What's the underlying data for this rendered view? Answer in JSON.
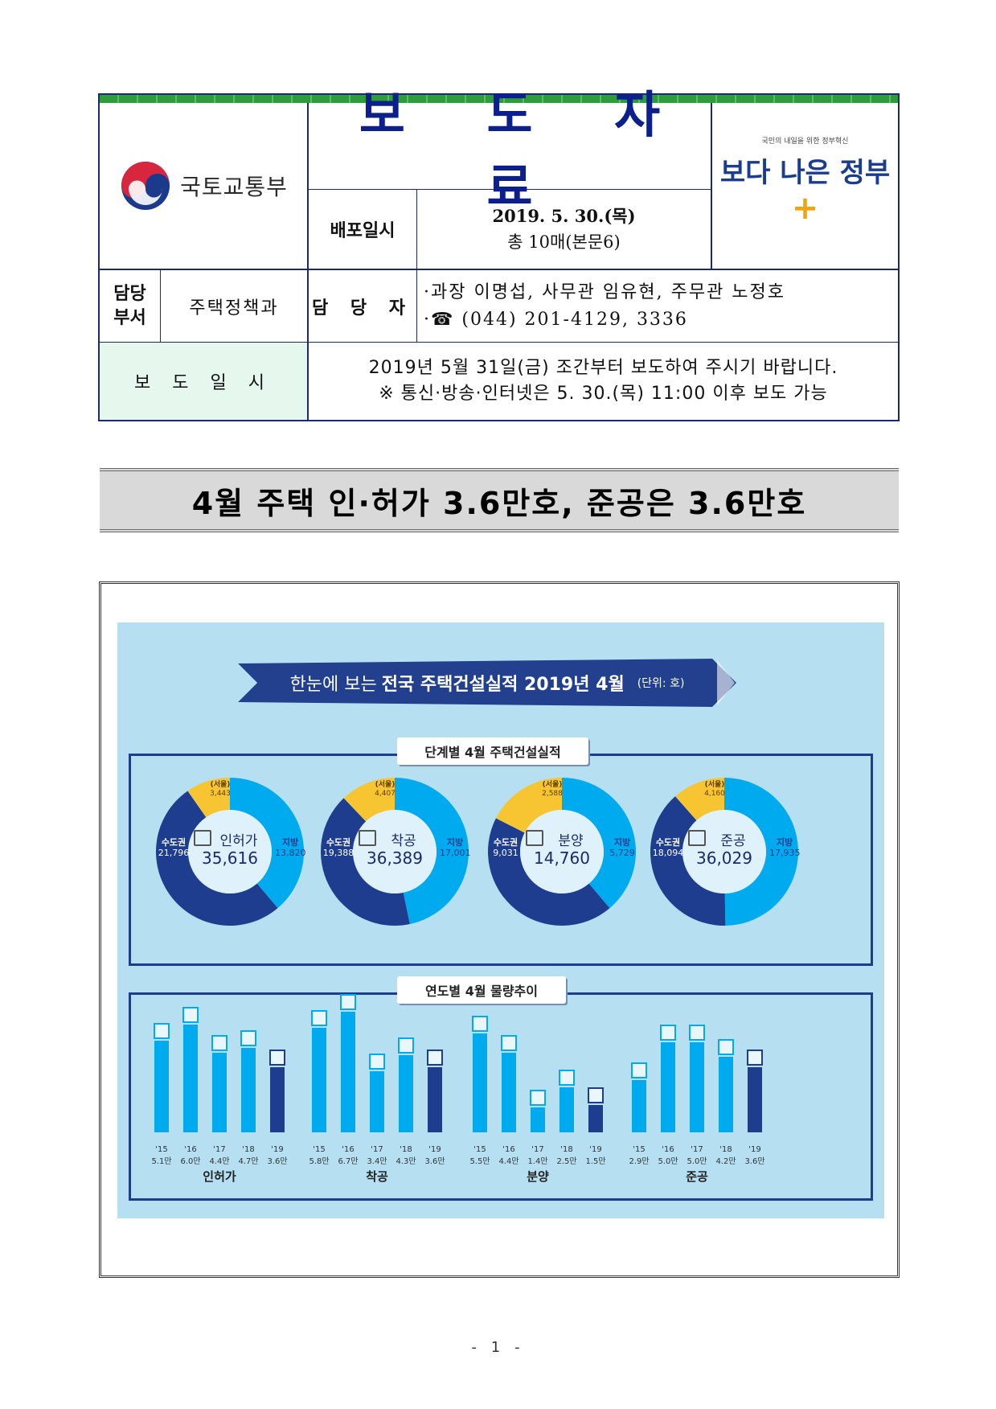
{
  "header": {
    "ministry_name": "국토교통부",
    "title": "보 도 자 료",
    "gov_slogan_small": "국민의 내일을 위한 정부혁신",
    "gov_slogan_main": "보다 나은 정부",
    "distribution": {
      "label": "배포일시",
      "date": "2019. 5. 30.(목)",
      "pages": "총 10매(본문6)"
    },
    "department": {
      "label": "담당\n부서",
      "value": "주택정책과"
    },
    "contact": {
      "label": "담 당 자",
      "line1": "·과장 이명섭, 사무관 임유현, 주무관 노정호",
      "line2": "·☎ (044) 201-4129, 3336"
    },
    "release": {
      "label": "보 도 일 시",
      "line1": "2019년 5월 31일(금) 조간부터 보도하여 주시기 바랍니다.",
      "line2": "※ 통신·방송·인터넷은 5. 30.(목) 11:00 이후 보도 가능"
    }
  },
  "headline": "4월 주택 인·허가 3.6만호, 준공은 3.6만호",
  "infographic": {
    "banner": {
      "pre": "한눈에 보는",
      "main": "전국 주택건설실적 2019년 4월",
      "unit": "(단위: 호)"
    },
    "section1_title": "단계별 4월 주택건설실적",
    "section2_title": "연도별 4월 물량추이",
    "colors": {
      "background": "#b6e0f1",
      "metro": "#1e3d8f",
      "region": "#00aaee",
      "seoul": "#f7c531",
      "bar": "#00aaee",
      "bar_current": "#1e3d8f"
    }
  },
  "chart_data": [
    {
      "type": "pie",
      "title": "단계별 4월 주택건설실적",
      "categories": [
        "인허가",
        "착공",
        "분양",
        "준공"
      ],
      "series": [
        {
          "name": "수도권",
          "values": [
            21796,
            19388,
            9031,
            18094
          ]
        },
        {
          "name": "지방",
          "values": [
            13820,
            17001,
            5729,
            17935
          ]
        },
        {
          "name": "(서울)",
          "values": [
            3443,
            4407,
            2588,
            4160
          ]
        }
      ],
      "totals": [
        35616,
        36389,
        14760,
        36029
      ],
      "labels": {
        "metro": "수도권",
        "region": "지방",
        "seoul": "(서울)",
        "totals_text": [
          "35,616",
          "36,389",
          "14,760",
          "36,029"
        ],
        "metro_text": [
          "21,796",
          "19,388",
          "9,031",
          "18,094"
        ],
        "region_text": [
          "13,820",
          "17,001",
          "5,729",
          "17,935"
        ],
        "seoul_text": [
          "3,443",
          "4,407",
          "2,588",
          "4,160"
        ]
      }
    },
    {
      "type": "bar",
      "title": "연도별 4월 물량추이",
      "unit": "만",
      "groups": [
        {
          "name": "인허가",
          "years": [
            "'15",
            "'16",
            "'17",
            "'18",
            "'19"
          ],
          "values": [
            5.1,
            6.0,
            4.4,
            4.7,
            3.6
          ],
          "value_labels": [
            "5.1만",
            "6.0만",
            "4.4만",
            "4.7만",
            "3.6만"
          ]
        },
        {
          "name": "착공",
          "years": [
            "'15",
            "'16",
            "'17",
            "'18",
            "'19"
          ],
          "values": [
            5.8,
            6.7,
            3.4,
            4.3,
            3.6
          ],
          "value_labels": [
            "5.8만",
            "6.7만",
            "3.4만",
            "4.3만",
            "3.6만"
          ]
        },
        {
          "name": "분양",
          "years": [
            "'15",
            "'16",
            "'17",
            "'18",
            "'19"
          ],
          "values": [
            5.5,
            4.4,
            1.4,
            2.5,
            1.5
          ],
          "value_labels": [
            "5.5만",
            "4.4만",
            "1.4만",
            "2.5만",
            "1.5만"
          ]
        },
        {
          "name": "준공",
          "years": [
            "'15",
            "'16",
            "'17",
            "'18",
            "'19"
          ],
          "values": [
            2.9,
            5.0,
            5.0,
            4.2,
            3.6
          ],
          "value_labels": [
            "2.9만",
            "5.0만",
            "5.0만",
            "4.2만",
            "3.6만"
          ]
        }
      ]
    }
  ],
  "page_number": "- 1 -"
}
